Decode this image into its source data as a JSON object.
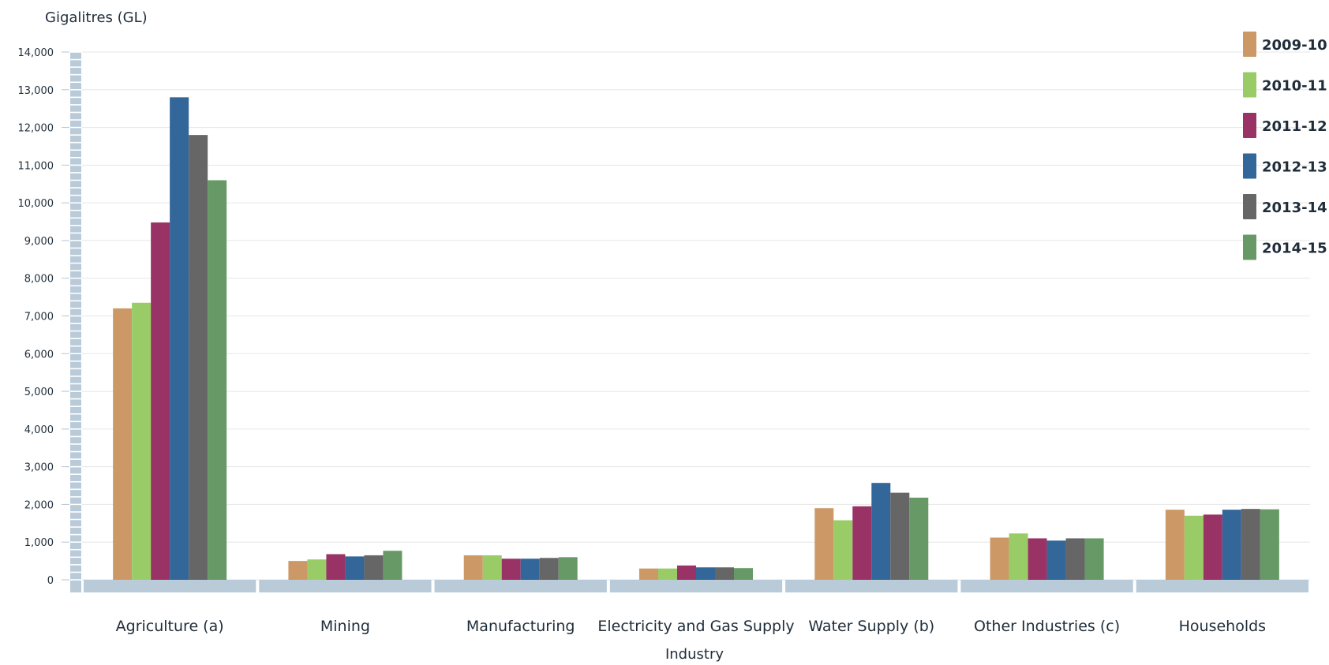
{
  "chart_data": {
    "type": "bar",
    "title": "",
    "ylabel": "Gigalitres (GL)",
    "xlabel": "Industry",
    "ylim": [
      0,
      14000
    ],
    "yticks": [
      0,
      1000,
      2000,
      3000,
      4000,
      5000,
      6000,
      7000,
      8000,
      9000,
      10000,
      11000,
      12000,
      13000,
      14000
    ],
    "ytick_labels": [
      "0",
      "1,000",
      "2,000",
      "3,000",
      "4,000",
      "5,000",
      "6,000",
      "7,000",
      "8,000",
      "9,000",
      "10,000",
      "11,000",
      "12,000",
      "13,000",
      "14,000"
    ],
    "grid": true,
    "legend_position": "top-right",
    "categories": [
      "Agriculture (a)",
      "Mining",
      "Manufacturing",
      "Electricity and Gas Supply",
      "Water Supply (b)",
      "Other Industries (c)",
      "Households"
    ],
    "series": [
      {
        "name": "2009-10",
        "color": "#cc9966",
        "values": [
          7200,
          500,
          650,
          300,
          1900,
          1120,
          1860
        ]
      },
      {
        "name": "2010-11",
        "color": "#99cc66",
        "values": [
          7350,
          540,
          650,
          300,
          1580,
          1230,
          1700
        ]
      },
      {
        "name": "2011-12",
        "color": "#993366",
        "values": [
          9480,
          680,
          560,
          380,
          1950,
          1100,
          1730
        ]
      },
      {
        "name": "2012-13",
        "color": "#336699",
        "values": [
          12800,
          620,
          560,
          330,
          2570,
          1040,
          1860
        ]
      },
      {
        "name": "2013-14",
        "color": "#666666",
        "values": [
          11800,
          650,
          580,
          330,
          2310,
          1100,
          1880
        ]
      },
      {
        "name": "2014-15",
        "color": "#669966",
        "values": [
          10600,
          770,
          600,
          310,
          2180,
          1100,
          1870
        ]
      }
    ]
  }
}
